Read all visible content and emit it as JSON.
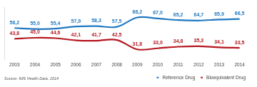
{
  "chart_data": {
    "type": "line",
    "categories": [
      "2003",
      "2004",
      "2005",
      "2006",
      "2007",
      "2008",
      "2009",
      "2010",
      "2011",
      "2012",
      "2013",
      "2014"
    ],
    "series": [
      {
        "name": "Reference Drug",
        "color": "#1f78c1",
        "values": [
          56.2,
          55.0,
          55.4,
          57.9,
          58.3,
          57.5,
          68.2,
          67.0,
          65.2,
          64.7,
          65.9,
          66.5
        ],
        "value_labels": [
          "56,2",
          "55,0",
          "55,4",
          "57,9",
          "58,3",
          "57,5",
          "68,2",
          "67,0",
          "65,2",
          "64,7",
          "65,9",
          "66,5"
        ]
      },
      {
        "name": "Bioequivalent Drug",
        "color": "#b5171f",
        "values": [
          43.8,
          45.0,
          44.6,
          42.1,
          41.7,
          42.5,
          31.8,
          33.0,
          34.8,
          35.3,
          34.1,
          33.5
        ],
        "value_labels": [
          "43,8",
          "45,0",
          "44,6",
          "42,1",
          "41,7",
          "42,5",
          "31,8",
          "33,0",
          "34,8",
          "35,3",
          "34,1",
          "33,5"
        ]
      }
    ],
    "ylim": [
      20,
      80
    ],
    "tick_labels": "x",
    "grid": false,
    "data_labels": true,
    "legend": "bottom right",
    "annotations": [
      "Source: IMS Health Data, 2014"
    ]
  }
}
